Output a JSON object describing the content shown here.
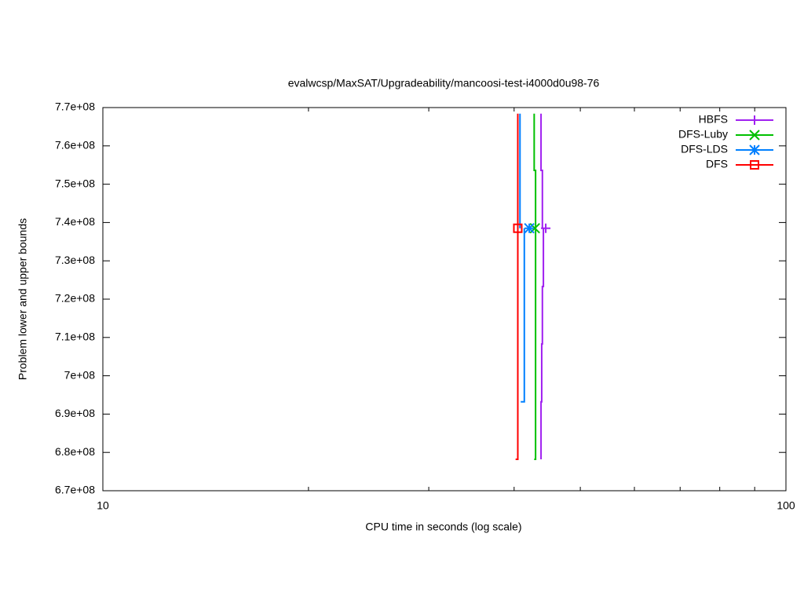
{
  "chart_data": {
    "type": "line",
    "title": "evalwcsp/MaxSAT/Upgradeability/mancoosi-test-i4000d0u98-76",
    "x_label": "CPU time in seconds (log scale)",
    "y_label": "Problem lower and upper bounds",
    "xlog": true,
    "xlim": [
      10,
      100
    ],
    "xticks": [
      10,
      100
    ],
    "xminorticks": [
      20,
      30,
      40,
      50,
      60,
      70,
      80,
      90
    ],
    "ylim": [
      670000000,
      770000000
    ],
    "yticks": [
      {
        "value": 670000000,
        "label": "6.7e+08"
      },
      {
        "value": 680000000,
        "label": "6.8e+08"
      },
      {
        "value": 690000000,
        "label": "6.9e+08"
      },
      {
        "value": 700000000,
        "label": "7e+08"
      },
      {
        "value": 710000000,
        "label": "7.1e+08"
      },
      {
        "value": 720000000,
        "label": "7.2e+08"
      },
      {
        "value": 730000000,
        "label": "7.3e+08"
      },
      {
        "value": 740000000,
        "label": "7.4e+08"
      },
      {
        "value": 750000000,
        "label": "7.5e+08"
      },
      {
        "value": 760000000,
        "label": "7.6e+08"
      },
      {
        "value": 770000000,
        "label": "7.7e+08"
      }
    ],
    "legend": "top-right",
    "series": [
      {
        "name": "HBFS",
        "color": "#a020f0",
        "marker": "plus",
        "x": [
          43.8,
          43.8,
          44.0,
          44.0,
          null,
          43.8,
          43.8,
          43.9,
          43.9,
          44.0,
          44.0,
          44.15,
          44.15
        ],
        "values": [
          768400000,
          753600000,
          753600000,
          738500000,
          null,
          678200000,
          693200000,
          693200000,
          708300000,
          708300000,
          723300000,
          723300000,
          738500000
        ],
        "optimum_x": 44.5,
        "optimum": 738500000
      },
      {
        "name": "DFS-Luby",
        "color": "#00c000",
        "marker": "cross",
        "x": [
          42.8,
          42.8,
          43.0,
          43.0,
          null,
          42.8,
          43.0,
          43.0
        ],
        "values": [
          768400000,
          753600000,
          753600000,
          738500000,
          null,
          678200000,
          678200000,
          738500000
        ],
        "optimum_x": 42.9,
        "optimum": 738500000
      },
      {
        "name": "DFS-LDS",
        "color": "#0080ff",
        "marker": "star",
        "x": [
          40.8,
          40.8,
          null,
          40.9,
          41.4,
          41.4
        ],
        "values": [
          768400000,
          738500000,
          null,
          693200000,
          693200000,
          738500000
        ],
        "optimum_x": 42.1,
        "optimum": 738500000
      },
      {
        "name": "DFS",
        "color": "#ff0000",
        "marker": "square",
        "x": [
          40.5,
          40.5,
          null,
          40.2,
          40.5,
          40.5
        ],
        "values": [
          768400000,
          738500000,
          null,
          678200000,
          678200000,
          738500000
        ],
        "optimum_x": 40.5,
        "optimum": 738500000
      }
    ]
  }
}
